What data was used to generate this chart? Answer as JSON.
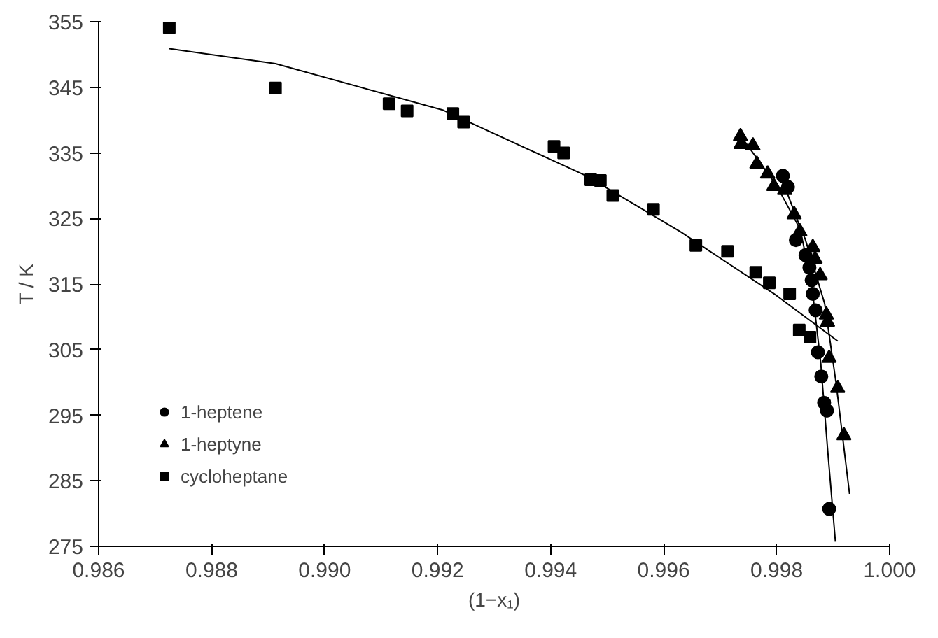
{
  "chart_data": {
    "type": "scatter",
    "xlabel": "(1−x₁)",
    "ylabel": "T / K",
    "xlim": [
      0.986,
      1.0
    ],
    "ylim": [
      275,
      355
    ],
    "xticks": [
      {
        "value": 0.986,
        "label": "0.986"
      },
      {
        "value": 0.988,
        "label": "0.988"
      },
      {
        "value": 0.99,
        "label": "0.990"
      },
      {
        "value": 0.992,
        "label": "0.992"
      },
      {
        "value": 0.994,
        "label": "0.994"
      },
      {
        "value": 0.996,
        "label": "0.996"
      },
      {
        "value": 0.998,
        "label": "0.998"
      },
      {
        "value": 1.0,
        "label": "1.000"
      }
    ],
    "yticks": [
      275,
      285,
      295,
      305,
      315,
      325,
      335,
      345,
      355
    ],
    "grid": false,
    "legend": "bottom left",
    "series": [
      {
        "name": "1-heptene",
        "color": "#000000",
        "marker": "circle",
        "x": [
          0.99811,
          0.9982,
          0.99834,
          0.99851,
          0.99858,
          0.99862,
          0.99864,
          0.99869,
          0.99873,
          0.99879,
          0.99884,
          0.99889,
          0.99893
        ],
        "values": [
          331.5,
          329.8,
          321.7,
          319.4,
          317.5,
          315.6,
          313.5,
          311.0,
          304.6,
          300.9,
          296.9,
          295.7,
          280.7
        ]
      },
      {
        "name": "1-heptyne",
        "color": "#000000",
        "marker": "triangle",
        "x": [
          0.99736,
          0.99737,
          0.99758,
          0.99765,
          0.99784,
          0.99795,
          0.99814,
          0.99831,
          0.99841,
          0.99864,
          0.99868,
          0.99877,
          0.99888,
          0.9989,
          0.99893,
          0.99908,
          0.99919
        ],
        "values": [
          337.5,
          336.3,
          336.1,
          333.3,
          331.8,
          329.9,
          329.3,
          325.6,
          323.0,
          320.6,
          318.8,
          316.3,
          310.3,
          309.2,
          303.7,
          299.1,
          291.9
        ]
      },
      {
        "name": "cycloheptane",
        "color": "#000000",
        "marker": "square",
        "x": [
          0.98725,
          0.98913,
          0.99114,
          0.99146,
          0.99227,
          0.99246,
          0.99406,
          0.99423,
          0.99471,
          0.99488,
          0.9951,
          0.99582,
          0.99657,
          0.99713,
          0.99763,
          0.99787,
          0.99823,
          0.9984,
          0.99859
        ],
        "values": [
          354.1,
          344.9,
          342.5,
          341.4,
          341.0,
          339.7,
          336.0,
          335.0,
          330.9,
          330.8,
          328.5,
          326.4,
          320.9,
          320.0,
          316.8,
          315.2,
          313.5,
          308.0,
          306.9
        ]
      },
      {
        "type": "line",
        "color": "#000000",
        "marker": "none",
        "x": [
          0.98725,
          0.98913,
          0.9921,
          0.99463,
          0.99631,
          0.99799,
          0.99908
        ],
        "values": [
          350.9,
          348.6,
          341.5,
          331.5,
          322.9,
          313.3,
          306.3
        ]
      },
      {
        "type": "line",
        "color": "#000000",
        "marker": "none",
        "x": [
          0.99733,
          0.998,
          0.9985,
          0.99885,
          0.99905,
          0.99929
        ],
        "values": [
          338,
          330,
          322,
          312,
          300,
          283
        ]
      },
      {
        "type": "line",
        "color": "#000000",
        "marker": "none",
        "x": [
          0.99805,
          0.9984,
          0.99862,
          0.99878,
          0.9989,
          0.99904
        ],
        "values": [
          332,
          324,
          315,
          303,
          290,
          275.7
        ]
      }
    ]
  }
}
